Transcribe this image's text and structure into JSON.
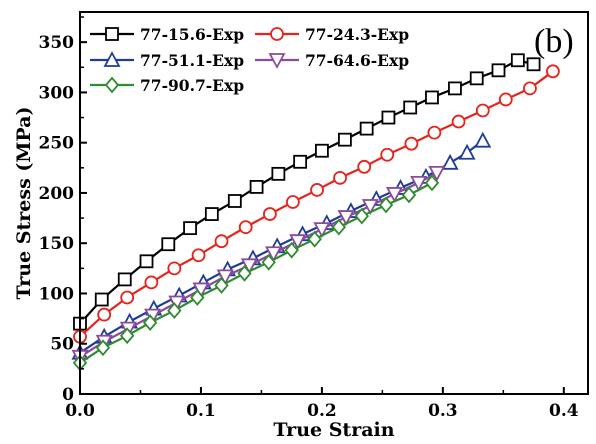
{
  "chart_data": {
    "type": "line",
    "panel_label": "(b)",
    "xlabel": "True Strain",
    "ylabel": "True Stress (MPa)",
    "xlim": [
      0.0,
      0.42
    ],
    "ylim": [
      0,
      380
    ],
    "xticks": [
      0.0,
      0.1,
      0.2,
      0.3,
      0.4
    ],
    "xtick_labels": [
      "0.0",
      "0.1",
      "0.2",
      "0.3",
      "0.4"
    ],
    "yticks": [
      0,
      50,
      100,
      150,
      200,
      250,
      300,
      350
    ],
    "ytick_labels": [
      "0",
      "50",
      "100",
      "150",
      "200",
      "250",
      "300",
      "350"
    ],
    "grid": false,
    "legend_position": "top-left",
    "series": [
      {
        "name": "77-15.6-Exp",
        "color": "#000000",
        "marker": "square",
        "x": [
          0,
          0.018,
          0.037,
          0.055,
          0.073,
          0.091,
          0.109,
          0.128,
          0.146,
          0.164,
          0.182,
          0.2,
          0.219,
          0.237,
          0.255,
          0.273,
          0.291,
          0.31,
          0.328,
          0.346,
          0.362,
          0.375
        ],
        "y": [
          70,
          94,
          114,
          132,
          149,
          165,
          179,
          192,
          206,
          219,
          231,
          242,
          253,
          264,
          275,
          285,
          295,
          304,
          314,
          322,
          332,
          328
        ]
      },
      {
        "name": "77-24.3-Exp",
        "color": "#e5241c",
        "marker": "circle",
        "x": [
          0,
          0.02,
          0.039,
          0.059,
          0.078,
          0.098,
          0.117,
          0.137,
          0.157,
          0.176,
          0.196,
          0.215,
          0.235,
          0.254,
          0.274,
          0.293,
          0.313,
          0.333,
          0.352,
          0.372,
          0.391
        ],
        "y": [
          57,
          79,
          96,
          111,
          125,
          138,
          152,
          166,
          179,
          191,
          203,
          215,
          226,
          238,
          249,
          260,
          271,
          282,
          293,
          304,
          321
        ]
      },
      {
        "name": "77-51.1-Exp",
        "color": "#1f3c96",
        "marker": "triangle-up",
        "x": [
          0,
          0.02,
          0.041,
          0.061,
          0.082,
          0.102,
          0.122,
          0.143,
          0.163,
          0.184,
          0.204,
          0.224,
          0.245,
          0.265,
          0.286,
          0.306,
          0.32,
          0.333
        ],
        "y": [
          41,
          57,
          72,
          85,
          98,
          111,
          124,
          135,
          147,
          159,
          170,
          182,
          194,
          205,
          216,
          230,
          240,
          252
        ]
      },
      {
        "name": "77-64.6-Exp",
        "color": "#8b4a9c",
        "marker": "triangle-down",
        "x": [
          0,
          0.02,
          0.04,
          0.06,
          0.08,
          0.1,
          0.12,
          0.14,
          0.16,
          0.18,
          0.2,
          0.22,
          0.24,
          0.26,
          0.28,
          0.295
        ],
        "y": [
          37,
          52,
          65,
          78,
          91,
          104,
          117,
          128,
          140,
          152,
          164,
          176,
          187,
          199,
          210,
          220
        ]
      },
      {
        "name": "77-90.7-Exp",
        "color": "#2e8b2e",
        "marker": "diamond",
        "x": [
          0,
          0.019,
          0.039,
          0.058,
          0.078,
          0.097,
          0.117,
          0.136,
          0.156,
          0.175,
          0.194,
          0.214,
          0.233,
          0.253,
          0.272,
          0.291
        ],
        "y": [
          31,
          46,
          58,
          71,
          83,
          96,
          108,
          120,
          131,
          143,
          154,
          166,
          177,
          188,
          198,
          210
        ]
      }
    ]
  }
}
